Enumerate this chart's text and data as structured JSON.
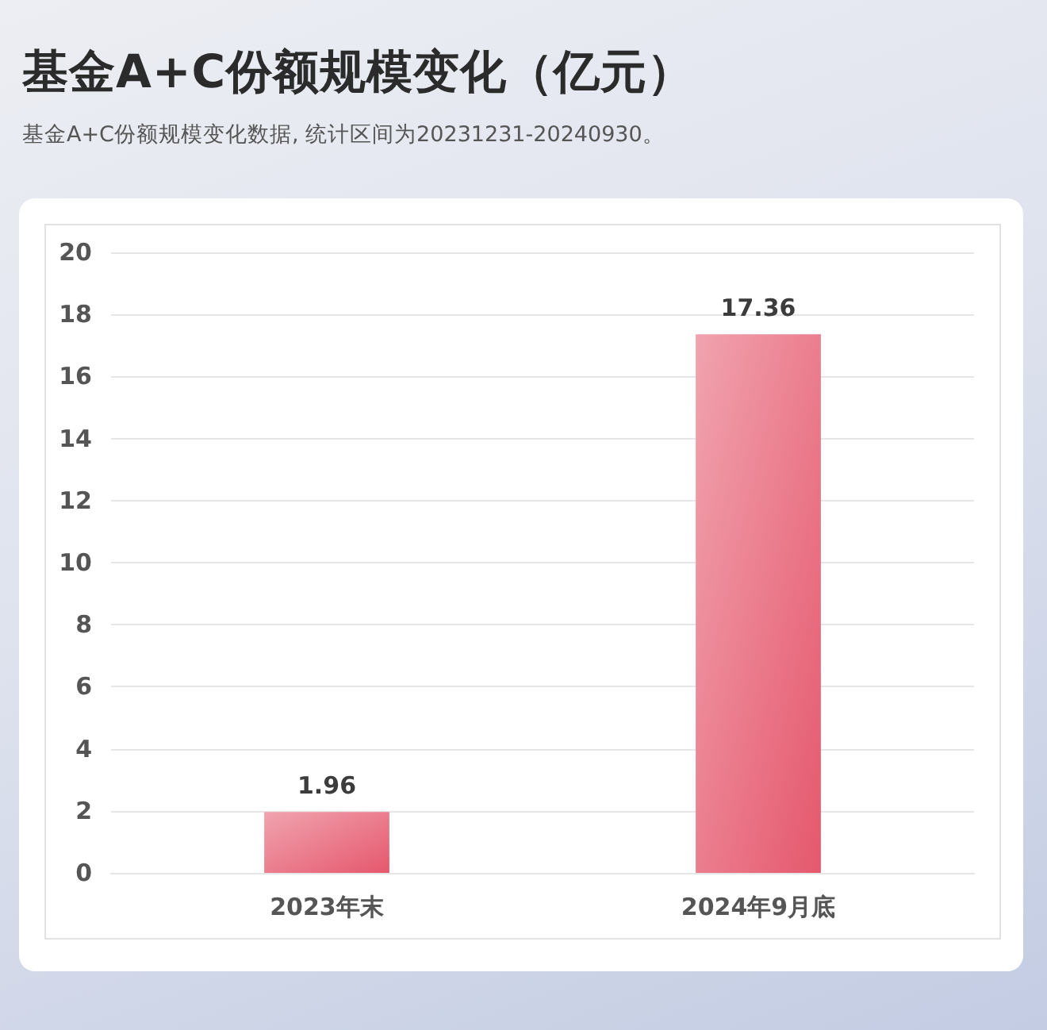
{
  "chart_data": {
    "type": "bar",
    "title": "基金A+C份额规模变化（亿元）",
    "subtitle": "基金A+C份额规模变化数据, 统计区间为20231231-20240930。",
    "categories": [
      "2023年末",
      "2024年9月底"
    ],
    "values": [
      1.96,
      17.36
    ],
    "color": "#e5586d",
    "ylim": [
      0,
      20
    ],
    "yticks": [
      0,
      2,
      4,
      6,
      8,
      10,
      12,
      14,
      16,
      18,
      20
    ],
    "grid": "y",
    "data_labels": true
  }
}
